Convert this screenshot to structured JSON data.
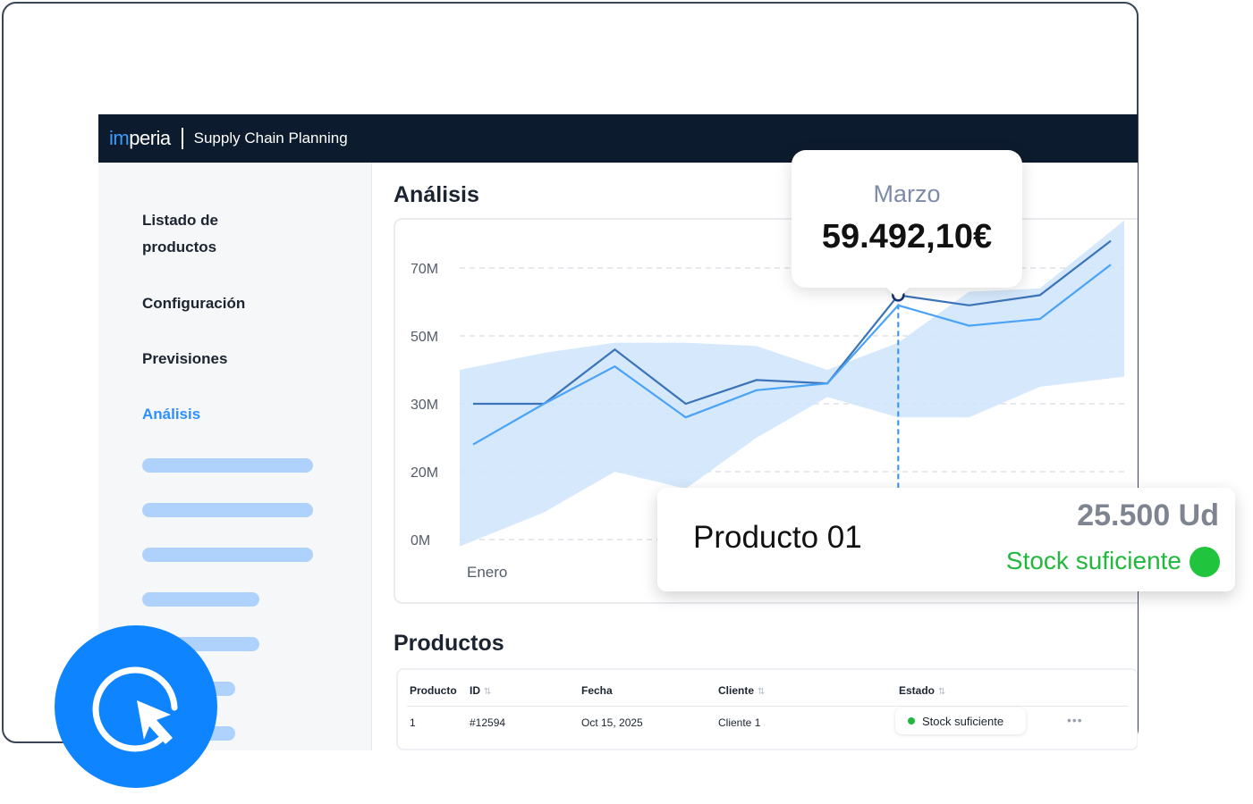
{
  "app": {
    "logo_prefix": "im",
    "logo_suffix": "peria",
    "subtitle": "Supply Chain Planning"
  },
  "sidebar": {
    "items": [
      {
        "label": "Listado de productos",
        "active": false
      },
      {
        "label": "Configuración",
        "active": false
      },
      {
        "label": "Previsiones",
        "active": false
      },
      {
        "label": "Análisis",
        "active": true
      }
    ]
  },
  "analysis": {
    "title": "Análisis",
    "tooltip": {
      "month": "Marzo",
      "value": "59.492,10€"
    }
  },
  "chart_data": {
    "type": "line",
    "x_first_label": "Enero",
    "yticks": [
      "70M",
      "50M",
      "30M",
      "20M",
      "0M"
    ],
    "grid": true,
    "series": [
      {
        "values": [
          30,
          30,
          46,
          30,
          37,
          36,
          62,
          59,
          62,
          78
        ]
      },
      {
        "values": [
          24,
          30,
          41,
          28,
          34,
          36,
          59,
          53,
          55,
          71
        ]
      }
    ],
    "band": {
      "upper": [
        40,
        45,
        48,
        48,
        47,
        40,
        48,
        63,
        64,
        84
      ],
      "lower": [
        -2,
        8,
        20,
        15,
        25,
        32,
        28,
        28,
        35,
        38
      ]
    },
    "highlight_index": 6,
    "colors": {
      "series_dark": "#3b74b8",
      "series_light": "#4aa3f7",
      "band": "#cfe5fb"
    }
  },
  "products_table": {
    "title": "Productos",
    "columns": [
      "Producto",
      "ID",
      "Fecha",
      "Cliente",
      "Estado"
    ],
    "rows": [
      {
        "producto": "1",
        "id": "#12594",
        "fecha": "Oct 15, 2025",
        "cliente": "Cliente 1",
        "estado": "Stock suficiente"
      }
    ]
  },
  "product_card": {
    "name": "Producto 01",
    "quantity": "25.500 Ud",
    "status": "Stock suficiente",
    "status_color": "#21c53d"
  },
  "icons": {
    "fab": "cursor-click-icon",
    "sort": "sort-icon",
    "more": "more-horizontal-icon"
  }
}
